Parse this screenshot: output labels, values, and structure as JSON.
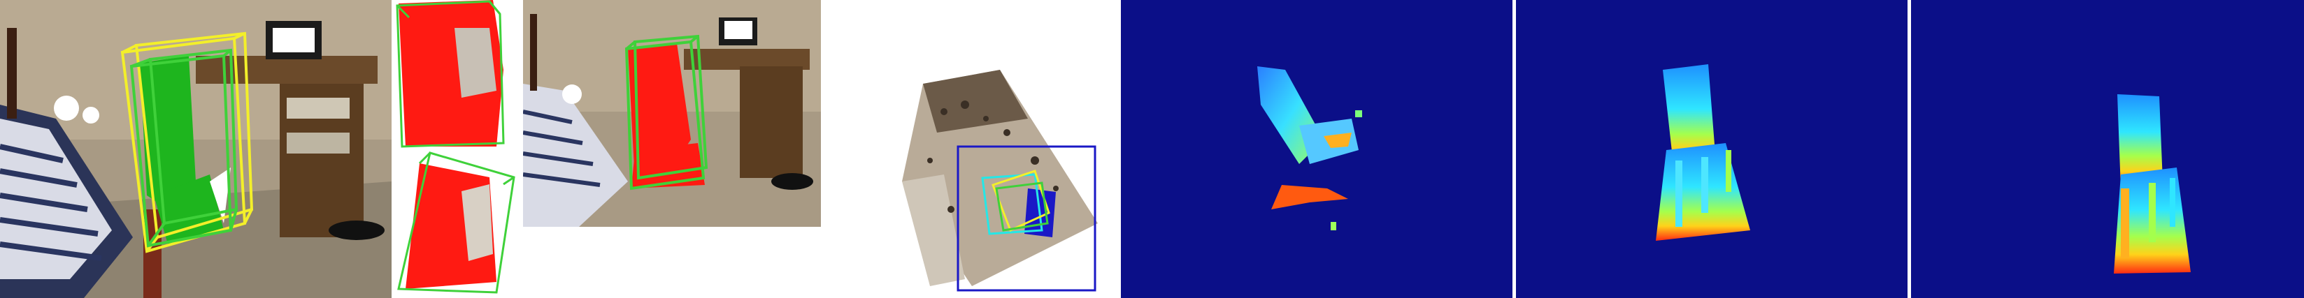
{
  "figure": {
    "panels": [
      {
        "name": "rgb-scene-with-3d-boxes"
      },
      {
        "name": "chart-crop-top"
      },
      {
        "name": "chart-crop-bottom"
      },
      {
        "name": "rgb-scene-with-segmentation"
      },
      {
        "name": "point-cloud-view"
      },
      {
        "name": "depth-map-observed"
      },
      {
        "name": "depth-map-rendered-a"
      },
      {
        "name": "depth-map-rendered-b"
      }
    ],
    "colors": {
      "box_yellow": "#f3ef2a",
      "box_green": "#3fd13a",
      "mask_red": "#ff1a12",
      "mask_green": "#1eb51e",
      "box_blue": "#1a18c6",
      "box_cyan": "#25e7e7",
      "depth_background": "#0b0f88"
    }
  }
}
